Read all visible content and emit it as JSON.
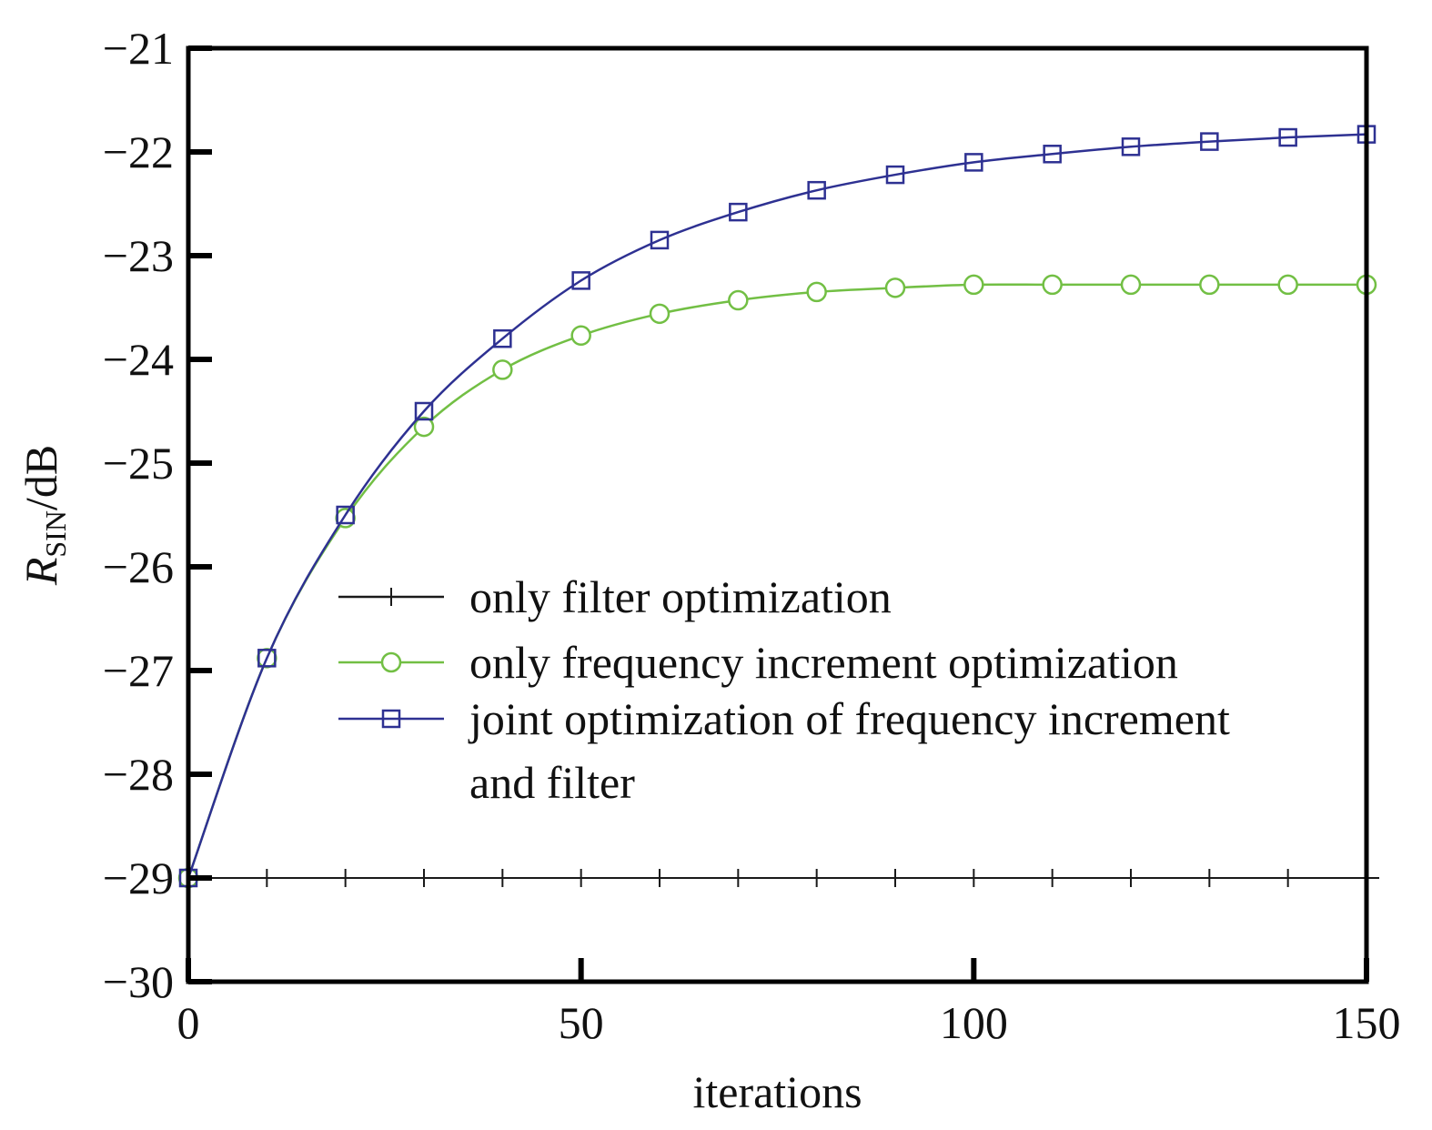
{
  "chart_data": {
    "type": "line",
    "xlabel": "iterations",
    "ylabel": {
      "main": "R",
      "sub": "SIN",
      "unit": "/dB"
    },
    "xlim": [
      0,
      150
    ],
    "ylim": [
      -30,
      -21
    ],
    "xticks": [
      0,
      50,
      100,
      150
    ],
    "xtick_labels": [
      "0",
      "50",
      "100",
      "150"
    ],
    "yticks": [
      -21,
      -22,
      -23,
      -24,
      -25,
      -26,
      -27,
      -28,
      -29,
      -30
    ],
    "ytick_labels": [
      "−21",
      "−22",
      "−23",
      "−24",
      "−25",
      "−26",
      "−27",
      "−28",
      "−29",
      "−30"
    ],
    "grid": false,
    "legend_position": "center-right",
    "x": [
      0,
      10,
      20,
      30,
      40,
      50,
      60,
      70,
      80,
      90,
      100,
      110,
      120,
      130,
      140,
      150
    ],
    "series": [
      {
        "name": "only filter optimization",
        "marker": "plus",
        "color": "#1a1a1a",
        "values": [
          -29.0,
          -29.0,
          -29.0,
          -29.0,
          -29.0,
          -29.0,
          -29.0,
          -29.0,
          -29.0,
          -29.0,
          -29.0,
          -29.0,
          -29.0,
          -29.0,
          -29.0,
          -29.0
        ]
      },
      {
        "name": "only frequency increment optimization",
        "marker": "circle",
        "color": "#72bf44",
        "values": [
          -29.0,
          -26.88,
          -25.53,
          -24.65,
          -24.1,
          -23.77,
          -23.56,
          -23.43,
          -23.35,
          -23.31,
          -23.28,
          -23.28,
          -23.28,
          -23.28,
          -23.28,
          -23.28
        ]
      },
      {
        "name": "joint optimization of frequency increment and filter",
        "marker": "square",
        "color": "#2e3192",
        "values": [
          -29.0,
          -26.88,
          -25.5,
          -24.5,
          -23.8,
          -23.24,
          -22.85,
          -22.58,
          -22.37,
          -22.22,
          -22.1,
          -22.02,
          -21.95,
          -21.9,
          -21.86,
          -21.83
        ]
      }
    ],
    "legend_labels": [
      [
        "only filter optimization"
      ],
      [
        "only frequency increment optimization"
      ],
      [
        "joint optimization of frequency increment",
        "and filter"
      ]
    ]
  }
}
